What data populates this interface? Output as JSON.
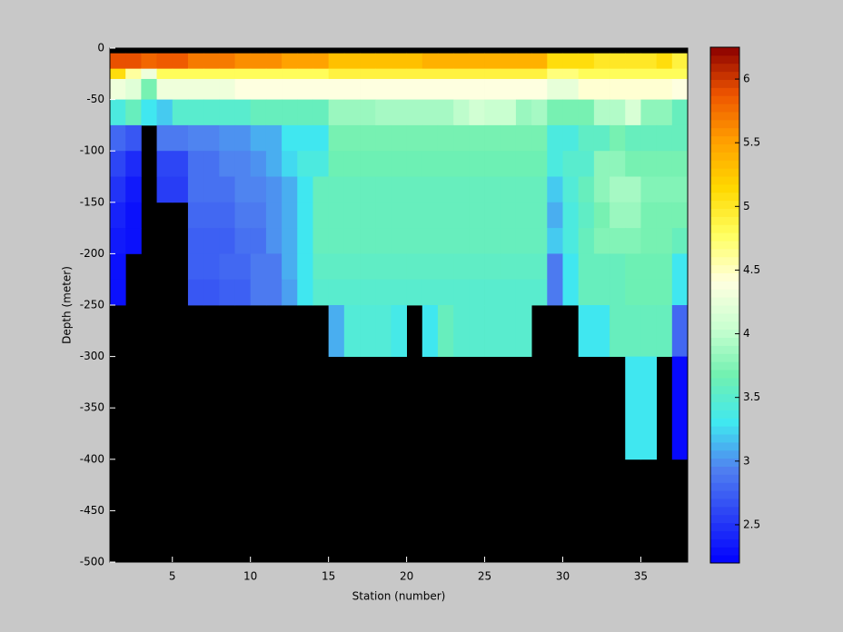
{
  "chart_data": {
    "type": "heatmap",
    "xlabel": "Station (number)",
    "ylabel": "Depth (meter)",
    "xlim": [
      1,
      38
    ],
    "xticks": [
      5,
      10,
      15,
      20,
      25,
      30,
      35
    ],
    "ylim": [
      -500,
      0
    ],
    "yticks": [
      0,
      -50,
      -100,
      -150,
      -200,
      -250,
      -300,
      -350,
      -400,
      -450,
      -500
    ],
    "x_edges": [
      1,
      2,
      3,
      4,
      5,
      6,
      7,
      8,
      9,
      10,
      11,
      12,
      13,
      14,
      15,
      16,
      17,
      18,
      19,
      20,
      21,
      22,
      23,
      24,
      25,
      26,
      27,
      28,
      29,
      30,
      31,
      32,
      33,
      34,
      35,
      36,
      37,
      38
    ],
    "y_edges": [
      -5,
      -20,
      -30,
      -50,
      -75,
      -100,
      -125,
      -150,
      -175,
      -200,
      -225,
      -250,
      -300,
      -400
    ],
    "z": [
      [
        5.9,
        5.9,
        5.8,
        5.85,
        5.85,
        5.7,
        5.7,
        5.7,
        5.6,
        5.6,
        5.6,
        5.5,
        5.5,
        5.5,
        5.3,
        5.3,
        5.3,
        5.3,
        5.3,
        5.3,
        5.4,
        5.4,
        5.4,
        5.4,
        5.4,
        5.4,
        5.4,
        5.4,
        5.1,
        5.1,
        5.1,
        5.0,
        5.0,
        5.0,
        5.0,
        5.1,
        4.9
      ],
      [
        5.1,
        4.6,
        4.3,
        4.8,
        4.8,
        4.8,
        4.8,
        4.8,
        4.8,
        4.8,
        4.8,
        4.8,
        4.8,
        4.8,
        4.9,
        4.9,
        4.9,
        4.9,
        4.9,
        4.9,
        4.9,
        4.9,
        4.9,
        4.9,
        4.9,
        4.9,
        4.9,
        4.9,
        4.7,
        4.7,
        4.8,
        4.8,
        4.8,
        4.8,
        4.8,
        4.8,
        4.8
      ],
      [
        4.3,
        4.2,
        3.7,
        4.3,
        4.3,
        4.3,
        4.3,
        4.3,
        4.4,
        4.4,
        4.4,
        4.4,
        4.4,
        4.4,
        4.4,
        4.4,
        4.4,
        4.4,
        4.4,
        4.4,
        4.4,
        4.4,
        4.4,
        4.4,
        4.4,
        4.4,
        4.4,
        4.4,
        4.25,
        4.25,
        4.45,
        4.45,
        4.45,
        4.45,
        4.45,
        4.45,
        4.4
      ],
      [
        3.4,
        3.6,
        3.3,
        3.2,
        3.5,
        3.5,
        3.5,
        3.5,
        3.5,
        3.6,
        3.6,
        3.6,
        3.6,
        3.6,
        3.85,
        3.85,
        3.85,
        3.9,
        3.9,
        3.9,
        3.9,
        3.9,
        4.0,
        4.1,
        4.05,
        4.05,
        3.85,
        3.9,
        3.7,
        3.7,
        3.7,
        3.95,
        3.95,
        4.15,
        3.8,
        3.8,
        3.6
      ],
      [
        2.8,
        2.7,
        null,
        2.9,
        2.9,
        2.95,
        2.95,
        3.0,
        3.0,
        3.1,
        3.1,
        3.3,
        3.3,
        3.3,
        3.7,
        3.7,
        3.7,
        3.7,
        3.7,
        3.7,
        3.7,
        3.7,
        3.7,
        3.7,
        3.7,
        3.7,
        3.7,
        3.7,
        3.4,
        3.4,
        3.55,
        3.55,
        3.7,
        3.6,
        3.6,
        3.6,
        3.6
      ],
      [
        2.6,
        2.45,
        null,
        2.6,
        2.6,
        2.85,
        2.85,
        2.95,
        2.95,
        3.0,
        3.1,
        3.25,
        3.4,
        3.4,
        3.65,
        3.65,
        3.65,
        3.65,
        3.65,
        3.65,
        3.65,
        3.65,
        3.65,
        3.65,
        3.65,
        3.65,
        3.65,
        3.65,
        3.4,
        3.5,
        3.5,
        3.8,
        3.8,
        3.7,
        3.7,
        3.7,
        3.7
      ],
      [
        2.5,
        2.35,
        null,
        2.55,
        2.55,
        2.85,
        2.85,
        2.85,
        2.95,
        2.95,
        3.0,
        3.1,
        3.3,
        3.6,
        3.6,
        3.6,
        3.6,
        3.6,
        3.6,
        3.6,
        3.6,
        3.6,
        3.6,
        3.6,
        3.6,
        3.6,
        3.6,
        3.6,
        3.2,
        3.45,
        3.6,
        3.8,
        3.9,
        3.9,
        3.75,
        3.75,
        3.75
      ],
      [
        2.4,
        2.3,
        null,
        null,
        null,
        2.8,
        2.8,
        2.8,
        2.9,
        2.9,
        3.0,
        3.1,
        3.3,
        3.6,
        3.6,
        3.6,
        3.6,
        3.6,
        3.6,
        3.6,
        3.6,
        3.6,
        3.6,
        3.6,
        3.6,
        3.6,
        3.6,
        3.6,
        3.1,
        3.4,
        3.55,
        3.7,
        3.85,
        3.85,
        3.7,
        3.7,
        3.7
      ],
      [
        2.35,
        2.3,
        null,
        null,
        null,
        2.75,
        2.75,
        2.75,
        2.85,
        2.85,
        3.0,
        3.1,
        3.3,
        3.6,
        3.6,
        3.6,
        3.6,
        3.6,
        3.6,
        3.6,
        3.6,
        3.6,
        3.6,
        3.6,
        3.6,
        3.6,
        3.6,
        3.6,
        3.2,
        3.4,
        3.6,
        3.75,
        3.75,
        3.75,
        3.7,
        3.7,
        3.6
      ],
      [
        2.3,
        null,
        null,
        null,
        null,
        2.75,
        2.75,
        2.8,
        2.8,
        2.9,
        2.9,
        3.1,
        3.3,
        3.55,
        3.55,
        3.55,
        3.55,
        3.55,
        3.55,
        3.55,
        3.55,
        3.55,
        3.55,
        3.55,
        3.55,
        3.55,
        3.55,
        3.55,
        2.9,
        3.3,
        3.6,
        3.6,
        3.6,
        3.65,
        3.65,
        3.65,
        3.3
      ],
      [
        2.3,
        null,
        null,
        null,
        null,
        2.7,
        2.7,
        2.75,
        2.75,
        2.9,
        2.9,
        3.05,
        3.3,
        3.5,
        3.5,
        3.5,
        3.5,
        3.5,
        3.5,
        3.5,
        3.5,
        3.5,
        3.5,
        3.5,
        3.5,
        3.5,
        3.5,
        3.5,
        2.9,
        3.3,
        3.6,
        3.6,
        3.6,
        3.65,
        3.65,
        3.65,
        3.3
      ],
      [
        null,
        null,
        null,
        null,
        null,
        null,
        null,
        null,
        null,
        null,
        null,
        null,
        null,
        null,
        3.1,
        3.45,
        3.45,
        3.45,
        3.35,
        null,
        3.3,
        3.6,
        3.5,
        3.5,
        3.5,
        3.5,
        3.5,
        null,
        null,
        null,
        3.3,
        3.3,
        3.6,
        3.6,
        3.6,
        3.6,
        2.8
      ],
      [
        null,
        null,
        null,
        null,
        null,
        null,
        null,
        null,
        null,
        null,
        null,
        null,
        null,
        null,
        null,
        null,
        null,
        null,
        null,
        null,
        null,
        null,
        null,
        null,
        null,
        null,
        null,
        null,
        null,
        null,
        null,
        null,
        null,
        3.3,
        3.3,
        null,
        2.25
      ]
    ],
    "background": "#000000",
    "clim": [
      2.2,
      6.25
    ],
    "colormap": [
      "#0000ff",
      "#2a40f5",
      "#5080f0",
      "#40e8f0",
      "#70f0b0",
      "#c8ffd0",
      "#ffffe0",
      "#ffff60",
      "#ffd800",
      "#ffa000",
      "#ee5500",
      "#8b0000"
    ],
    "colorbar_ticks": [
      2.5,
      3,
      3.5,
      4,
      4.5,
      5,
      5.5,
      6
    ]
  }
}
